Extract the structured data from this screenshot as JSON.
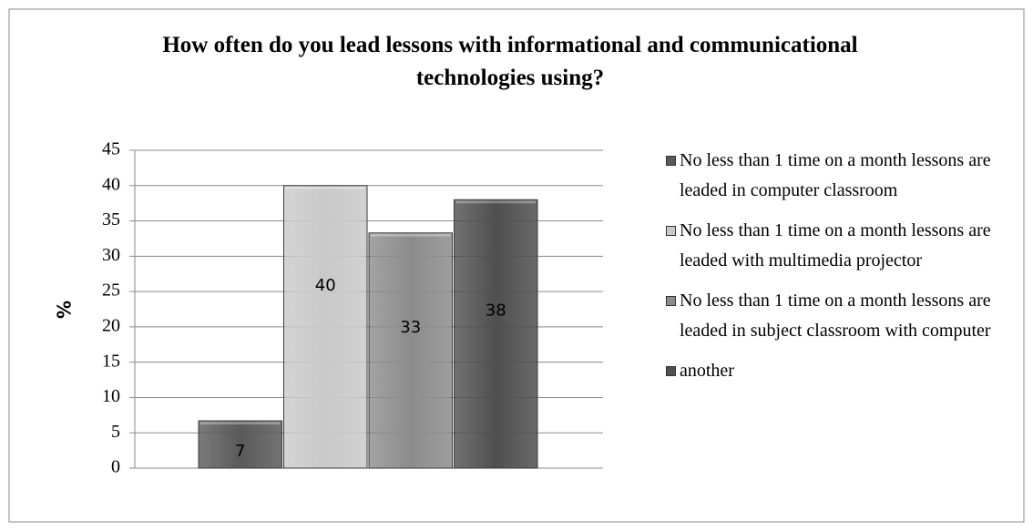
{
  "chart_data": {
    "type": "bar",
    "title": "How often do you lead lessons with informational and communicational technologies using?",
    "ylabel": "%",
    "categories": [
      null
    ],
    "series": [
      {
        "name": "No less than 1 time on a month lessons are leaded in computer classroom",
        "color": "#5a5a5a",
        "values": [
          6.7
        ],
        "value_labels": [
          "7"
        ]
      },
      {
        "name": "No less than 1 time on a month lessons are leaded with multimedia projector",
        "color": "#c9c9c9",
        "values": [
          40
        ],
        "value_labels": [
          "40"
        ]
      },
      {
        "name": "No less than 1 time on a month lessons are leaded in subject classroom with computer",
        "color": "#8c8c8c",
        "values": [
          33.3
        ],
        "value_labels": [
          "33"
        ]
      },
      {
        "name": "another",
        "color": "#4f4f4f",
        "values": [
          38
        ],
        "value_labels": [
          "38"
        ]
      }
    ],
    "ylim": [
      0,
      45
    ],
    "yticks": [
      0,
      5,
      10,
      15,
      20,
      25,
      30,
      35,
      40,
      45
    ],
    "grid": true,
    "legend": "right"
  }
}
